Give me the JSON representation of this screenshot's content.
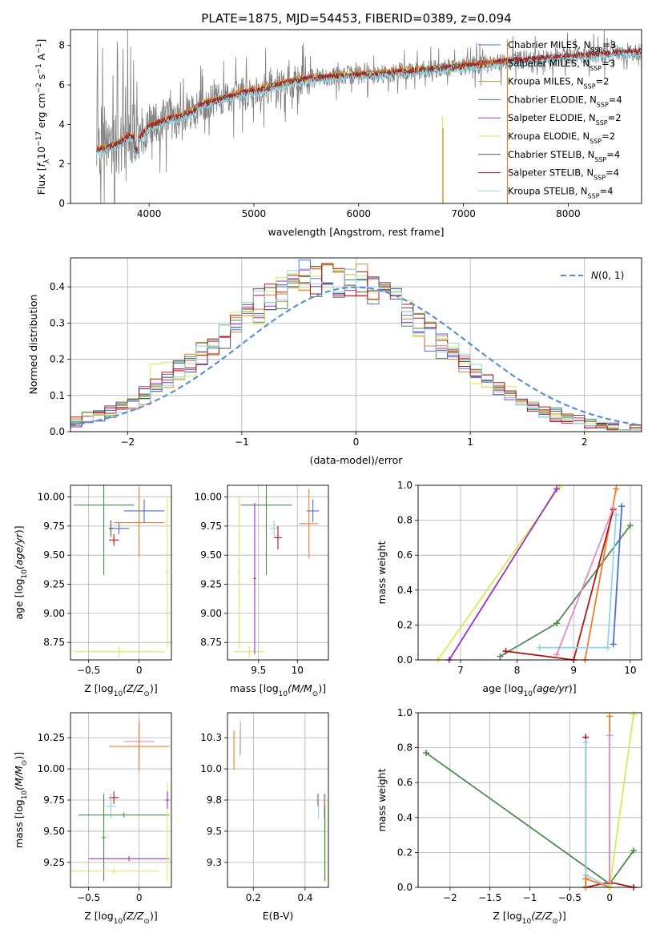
{
  "figure_title": "PLATE=1875, MJD=54453, FIBERID=0389, z=0.094",
  "colors": {
    "Chabrier MILES": "#4b6fd4",
    "Salpeter MILES": "#f07c28",
    "Kroupa MILES": "#c88a3c",
    "Chabrier ELODIE": "#4f8a4f",
    "Salpeter ELODIE": "#9b30c8",
    "Kroupa ELODIE": "#d7ea5a",
    "Chabrier STELIB": "#555555",
    "Salpeter STELIB": "#b01818",
    "Kroupa STELIB": "#8fd6e6",
    "data": "#808080",
    "normal": "#5b8fd6",
    "pink": "#e78ac3"
  },
  "chart_data": [
    {
      "id": "spectrum",
      "type": "line",
      "title": "PLATE=1875, MJD=54453, FIBERID=0389, z=0.094",
      "xlabel": "wavelength [Angstrom, rest frame]",
      "ylabel": "Flux [f_λ 10^-17 erg cm^-2 s^-1 A^-1]",
      "xlim": [
        3250,
        8700
      ],
      "ylim": [
        0,
        8.8
      ],
      "xticks": [
        4000,
        5000,
        6000,
        7000,
        8000
      ],
      "yticks": [
        0,
        2,
        4,
        6,
        8
      ],
      "grid": false,
      "legend_position": "right",
      "legend": [
        "Chabrier MILES, N_SSP=3",
        "Salpeter MILES, N_SSP=3",
        "Kroupa MILES, N_SSP=2",
        "Chabrier ELODIE, N_SSP=4",
        "Salpeter ELODIE, N_SSP=2",
        "Kroupa ELODIE, N_SSP=2",
        "Chabrier STELIB, N_SSP=4",
        "Salpeter STELIB, N_SSP=4",
        "Kroupa STELIB, N_SSP=4"
      ],
      "model_continuum": {
        "x": [
          3500,
          3600,
          3700,
          3800,
          3900,
          4000,
          4100,
          4200,
          4300,
          4400,
          4500,
          4700,
          4900,
          5100,
          5300,
          5500,
          5700,
          5900,
          6100,
          6300,
          6500,
          6700,
          6900,
          7100,
          7300,
          7400
        ],
        "y": [
          2.7,
          2.8,
          3.0,
          3.4,
          3.3,
          3.9,
          4.1,
          4.3,
          4.4,
          4.6,
          5.0,
          5.3,
          5.6,
          5.8,
          6.1,
          6.3,
          6.4,
          6.5,
          6.5,
          6.6,
          6.7,
          6.8,
          6.9,
          7.0,
          7.1,
          7.2
        ]
      },
      "spikes": [
        {
          "x": 6800,
          "y_top": 4.4,
          "series": "Kroupa ELODIE"
        },
        {
          "x": 6805,
          "y_top": 3.8,
          "series": "Kroupa MILES"
        },
        {
          "x": 7420,
          "y_top": 8.3,
          "series": "Salpeter MILES"
        }
      ]
    },
    {
      "id": "residuals",
      "type": "line",
      "xlabel": "(data-model)/error",
      "ylabel": "Normed distribution",
      "xlim": [
        -2.5,
        2.5
      ],
      "ylim": [
        0,
        0.48
      ],
      "xticks": [
        -2,
        -1,
        0,
        1,
        2
      ],
      "yticks": [
        0.0,
        0.1,
        0.2,
        0.3,
        0.4
      ],
      "grid": true,
      "legend_position": "top-right",
      "legend": [
        "N(0, 1)"
      ],
      "series": [
        {
          "name": "N(0, 1)",
          "type": "gaussian",
          "mean": 0,
          "sigma": 1
        }
      ]
    },
    {
      "id": "age_vs_Z",
      "type": "scatter",
      "xlabel": "Z [log10(Z/Z⊙)]",
      "ylabel": "age  [log10(age/yr)]",
      "xlim": [
        -0.68,
        0.32
      ],
      "ylim": [
        8.6,
        10.1
      ],
      "xticks": [
        -0.5,
        0.0
      ],
      "yticks": [
        8.75,
        9.0,
        9.25,
        9.5,
        9.75,
        10.0
      ],
      "grid": true,
      "errorbars": [
        {
          "x": -0.2,
          "y": 9.73,
          "xerr": 0.1,
          "yerr": 0.05,
          "color": "Chabrier MILES"
        },
        {
          "x": 0.0,
          "y": 9.78,
          "xerr": 0.25,
          "yerr": 0.3,
          "color": "Salpeter MILES"
        },
        {
          "x": 0.05,
          "y": 9.88,
          "xerr": 0.2,
          "yerr": 0.1,
          "color": "Chabrier MILES"
        },
        {
          "x": -0.28,
          "y": 9.73,
          "xerr": 0.02,
          "yerr": 0.07,
          "color": "Chabrier STELIB"
        },
        {
          "x": -0.25,
          "y": 9.63,
          "xerr": 0.05,
          "yerr": 0.05,
          "color": "Salpeter STELIB"
        },
        {
          "x": -0.35,
          "y": 9.93,
          "xerr": 0.3,
          "yerr": 0.6,
          "color": "Chabrier ELODIE"
        },
        {
          "x": -0.2,
          "y": 8.67,
          "xerr": 0.45,
          "yerr": 0.05,
          "color": "Kroupa ELODIE"
        },
        {
          "x": 0.28,
          "y": 9.35,
          "xerr": 0.02,
          "yerr": 0.65,
          "color": "Kroupa ELODIE"
        }
      ]
    },
    {
      "id": "age_vs_mass",
      "type": "scatter",
      "xlabel": "mass [log10(M/M⊙)]",
      "xlim": [
        9.1,
        10.4
      ],
      "ylim": [
        8.6,
        10.1
      ],
      "xticks": [
        9.5,
        10.0
      ],
      "yticks": [
        8.75,
        9.0,
        9.25,
        9.5,
        9.75,
        10.0
      ],
      "grid": true,
      "errorbars": [
        {
          "x": 9.6,
          "y": 9.93,
          "xerr": 0.33,
          "yerr": 0.6,
          "color": "Chabrier ELODIE"
        },
        {
          "x": 9.38,
          "y": 8.67,
          "xerr": 0.2,
          "yerr": 0.05,
          "color": "Kroupa ELODIE"
        },
        {
          "x": 9.25,
          "y": 9.35,
          "xerr": 0.02,
          "yerr": 0.65,
          "color": "Kroupa ELODIE"
        },
        {
          "x": 9.45,
          "y": 9.3,
          "xerr": 0.02,
          "yerr": 0.65,
          "color": "Salpeter ELODIE"
        },
        {
          "x": 9.7,
          "y": 9.73,
          "xerr": 0.05,
          "yerr": 0.07,
          "color": "Kroupa STELIB"
        },
        {
          "x": 9.75,
          "y": 9.65,
          "xerr": 0.05,
          "yerr": 0.1,
          "color": "Salpeter STELIB"
        },
        {
          "x": 10.15,
          "y": 9.77,
          "xerr": 0.12,
          "yerr": 0.3,
          "color": "Salpeter MILES"
        },
        {
          "x": 10.2,
          "y": 9.88,
          "xerr": 0.08,
          "yerr": 0.1,
          "color": "Chabrier MILES"
        }
      ]
    },
    {
      "id": "weight_vs_age",
      "type": "line",
      "xlabel": "age  [log10(age/yr)]",
      "ylabel": "mass weight",
      "xlim": [
        6.25,
        10.2
      ],
      "ylim": [
        0,
        1
      ],
      "xticks": [
        7,
        8,
        9,
        10
      ],
      "yticks": [
        0.0,
        0.2,
        0.4,
        0.6,
        0.8,
        1.0
      ],
      "grid": true,
      "series": [
        {
          "color": "Kroupa ELODIE",
          "x": [
            6.6,
            8.75
          ],
          "y": [
            0.0,
            0.99
          ]
        },
        {
          "color": "Salpeter ELODIE",
          "x": [
            6.8,
            8.7
          ],
          "y": [
            0.0,
            0.98
          ]
        },
        {
          "color": "Chabrier ELODIE",
          "x": [
            7.7,
            8.7,
            10.0
          ],
          "y": [
            0.02,
            0.21,
            0.77
          ]
        },
        {
          "color": "Chabrier MILES",
          "x": [
            9.7,
            9.85
          ],
          "y": [
            0.09,
            0.88
          ]
        },
        {
          "color": "Salpeter MILES",
          "x": [
            9.2,
            9.75
          ],
          "y": [
            0.0,
            0.98
          ]
        },
        {
          "color": "Salpeter STELIB",
          "x": [
            7.8,
            9.0,
            9.7
          ],
          "y": [
            0.05,
            0.0,
            0.86
          ]
        },
        {
          "color": "Kroupa STELIB",
          "x": [
            8.4,
            9.6,
            9.75
          ],
          "y": [
            0.07,
            0.07,
            0.83
          ]
        },
        {
          "color": "pink",
          "x": [
            8.7,
            9.7
          ],
          "y": [
            0.03,
            0.87
          ]
        }
      ]
    },
    {
      "id": "mass_vs_Z",
      "type": "scatter",
      "xlabel": "Z [log10(Z/Z⊙)]",
      "ylabel": "mass [log10(M/M⊙)]",
      "xlim": [
        -0.68,
        0.32
      ],
      "ylim": [
        9.05,
        10.45
      ],
      "xticks": [
        -0.5,
        0.0
      ],
      "yticks": [
        9.25,
        9.5,
        9.75,
        10.0,
        10.25
      ],
      "grid": true,
      "errorbars": [
        {
          "x": 0.0,
          "y": 10.22,
          "xerr": 0.15,
          "yerr": 0.18,
          "color": "pink"
        },
        {
          "x": 0.0,
          "y": 10.18,
          "xerr": 0.3,
          "yerr": 0.2,
          "color": "Salpeter MILES"
        },
        {
          "x": -0.25,
          "y": 9.77,
          "xerr": 0.05,
          "yerr": 0.05,
          "color": "Salpeter STELIB"
        },
        {
          "x": -0.28,
          "y": 9.7,
          "xerr": 0.05,
          "yerr": 0.1,
          "color": "Kroupa STELIB"
        },
        {
          "x": -0.15,
          "y": 9.63,
          "xerr": 0.45,
          "yerr": 0.02,
          "color": "Chabrier ELODIE"
        },
        {
          "x": -0.35,
          "y": 9.45,
          "xerr": 0.02,
          "yerr": 0.35,
          "color": "Chabrier ELODIE"
        },
        {
          "x": -0.1,
          "y": 9.28,
          "xerr": 0.4,
          "yerr": 0.02,
          "color": "Salpeter ELODIE"
        },
        {
          "x": -0.25,
          "y": 9.18,
          "xerr": 0.45,
          "yerr": 0.02,
          "color": "Kroupa ELODIE"
        },
        {
          "x": 0.28,
          "y": 9.5,
          "xerr": 0.02,
          "yerr": 0.4,
          "color": "Kroupa ELODIE"
        },
        {
          "x": 0.28,
          "y": 9.75,
          "xerr": 0.02,
          "yerr": 0.07,
          "color": "Salpeter ELODIE"
        }
      ]
    },
    {
      "id": "mass_vs_ebv",
      "type": "scatter",
      "xlabel": "E(B-V)",
      "xlim": [
        0.1,
        0.49
      ],
      "ylim": [
        9.05,
        10.45
      ],
      "xticks": [
        0.2,
        0.4
      ],
      "yticks": [
        9.25,
        9.5,
        9.75,
        10.0,
        10.25
      ],
      "grid": true,
      "errorbars": [
        {
          "x": 0.125,
          "y": 10.15,
          "xerr": 0.0,
          "yerr": 0.16,
          "color": "Salpeter MILES"
        },
        {
          "x": 0.15,
          "y": 10.25,
          "xerr": 0.0,
          "yerr": 0.13,
          "color": "pink"
        },
        {
          "x": 0.148,
          "y": 10.2,
          "xerr": 0.0,
          "yerr": 0.1,
          "color": "Kroupa STELIB"
        },
        {
          "x": 0.45,
          "y": 9.75,
          "xerr": 0.0,
          "yerr": 0.05,
          "color": "Salpeter STELIB"
        },
        {
          "x": 0.452,
          "y": 9.7,
          "xerr": 0.0,
          "yerr": 0.1,
          "color": "Kroupa STELIB"
        },
        {
          "x": 0.475,
          "y": 9.7,
          "xerr": 0.0,
          "yerr": 0.1,
          "color": "Salpeter ELODIE"
        },
        {
          "x": 0.478,
          "y": 9.45,
          "xerr": 0.0,
          "yerr": 0.35,
          "color": "Kroupa ELODIE"
        },
        {
          "x": 0.476,
          "y": 9.4,
          "xerr": 0.0,
          "yerr": 0.3,
          "color": "Chabrier ELODIE"
        }
      ]
    },
    {
      "id": "weight_vs_Z",
      "type": "line",
      "xlabel": "Z [log10(Z/Z⊙)]",
      "ylabel": "mass weight",
      "xlim": [
        -2.4,
        0.4
      ],
      "ylim": [
        0,
        1
      ],
      "xticks": [
        -2.0,
        -1.5,
        -1.0,
        -0.5,
        0.0
      ],
      "yticks": [
        0.0,
        0.2,
        0.4,
        0.6,
        0.8,
        1.0
      ],
      "grid": true,
      "series": [
        {
          "color": "Chabrier ELODIE",
          "x": [
            -2.3,
            0.0,
            0.3
          ],
          "y": [
            0.77,
            0.02,
            0.21
          ]
        },
        {
          "color": "Salpeter STELIB",
          "x": [
            -0.3,
            -0.3,
            0.0,
            0.3
          ],
          "y": [
            0.86,
            0.0,
            0.03,
            0.0
          ]
        },
        {
          "color": "Kroupa STELIB",
          "x": [
            -0.3,
            -0.3,
            0.0
          ],
          "y": [
            0.83,
            0.07,
            0.0
          ]
        },
        {
          "color": "Salpeter MILES",
          "x": [
            -0.3,
            -0.3,
            0.0,
            0.0
          ],
          "y": [
            0.0,
            0.05,
            0.0,
            0.98
          ]
        },
        {
          "color": "pink",
          "x": [
            0.0,
            0.0
          ],
          "y": [
            0.03,
            0.87
          ]
        },
        {
          "color": "Kroupa ELODIE",
          "x": [
            0.0,
            0.3
          ],
          "y": [
            0.0,
            0.99
          ]
        }
      ]
    }
  ]
}
